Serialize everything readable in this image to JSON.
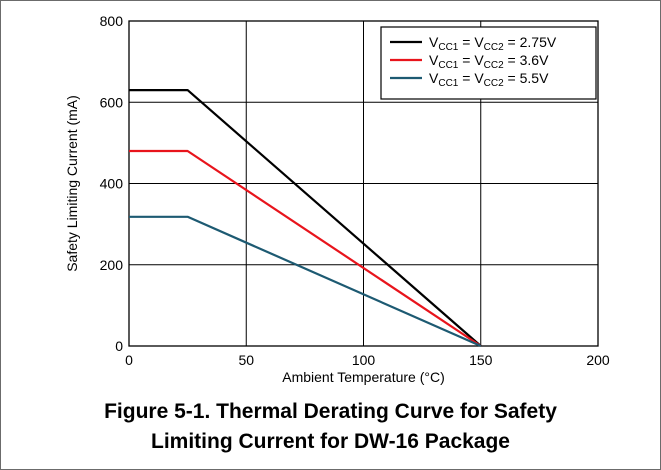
{
  "chart_data": {
    "type": "line",
    "title": "",
    "xlabel": "Ambient Temperature (°C)",
    "ylabel": "Safety Limiting Current (mA)",
    "xlim": [
      0,
      200
    ],
    "ylim": [
      0,
      800
    ],
    "x_ticks": [
      "0",
      "50",
      "100",
      "150",
      "200"
    ],
    "y_ticks": [
      "0",
      "200",
      "400",
      "600",
      "800"
    ],
    "grid": true,
    "legend_position": "top-right",
    "series": [
      {
        "name_parts": [
          "V",
          "CC1",
          " = V",
          "CC2",
          " = 2.75V"
        ],
        "color": "#000000",
        "points": [
          [
            0,
            630
          ],
          [
            25,
            630
          ],
          [
            150,
            0
          ]
        ]
      },
      {
        "name_parts": [
          "V",
          "CC1",
          " = V",
          "CC2",
          " = 3.6V"
        ],
        "color": "#e8141c",
        "points": [
          [
            0,
            480
          ],
          [
            25,
            480
          ],
          [
            150,
            0
          ]
        ]
      },
      {
        "name_parts": [
          "V",
          "CC1",
          " = V",
          "CC2",
          " = 5.5V"
        ],
        "color": "#1d5a72",
        "points": [
          [
            0,
            318
          ],
          [
            25,
            318
          ],
          [
            150,
            0
          ]
        ]
      }
    ]
  },
  "caption": {
    "line1": "Figure 5-1. Thermal Derating Curve for Safety",
    "line2": "Limiting Current for DW-16 Package"
  }
}
